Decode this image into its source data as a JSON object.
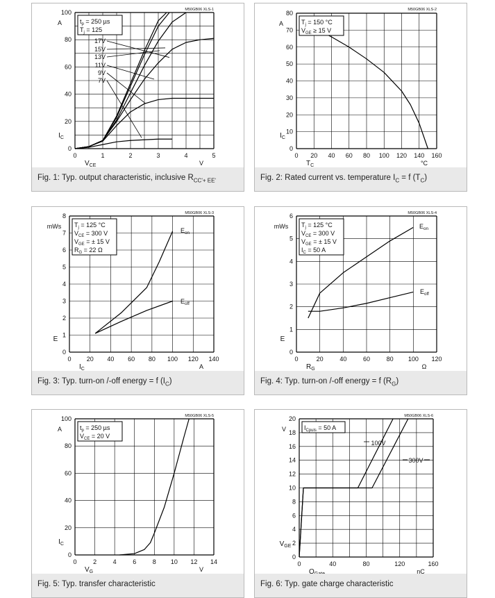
{
  "charts": [
    {
      "code": "M50GB06 XLS-1",
      "caption": "Fig. 1: Typ. output characteristic, inclusive R",
      "caption_sub": "CC'+ EE'",
      "legend": [
        "t",
        "p",
        " = 250 µs",
        "T",
        "j",
        " = 125"
      ],
      "ylabel": "I",
      "ylabel_sub": "C",
      "yunit": "A",
      "xlabel": "V",
      "xlabel_sub": "CE",
      "xunit": "V",
      "xlim": [
        0,
        5
      ],
      "ylim": [
        0,
        100
      ],
      "xticks": [
        "0",
        "1",
        "2",
        "3",
        "4",
        "5"
      ],
      "yticks": [
        "0",
        "20",
        "40",
        "60",
        "80",
        "100"
      ]
    },
    {
      "code": "M50GB06 XLS-2",
      "caption": "Fig. 2: Rated current vs. temperature I",
      "caption_mid_sub": "C",
      "caption_tail": " = f (T",
      "caption_tail_sub": "C",
      "caption_end": ")",
      "legend": [
        "T",
        "j",
        " = 150 °C",
        "V",
        "GE",
        " ≥ 15 V"
      ],
      "ylabel": "I",
      "ylabel_sub": "C",
      "yunit": "A",
      "xlabel": "T",
      "xlabel_sub": "C",
      "xunit": "°C",
      "xlim": [
        0,
        160
      ],
      "ylim": [
        0,
        80
      ],
      "xticks": [
        "0",
        "20",
        "40",
        "60",
        "80",
        "100",
        "120",
        "140",
        "160"
      ],
      "yticks": [
        "0",
        "10",
        "20",
        "30",
        "40",
        "50",
        "60",
        "70",
        "80"
      ]
    },
    {
      "code": "M50GB06 XLS-3",
      "caption": "Fig. 3: Typ. turn-on /-off energy = f (I",
      "caption_sub": "C",
      "caption_end": ")",
      "legend": [
        "T",
        "j",
        " = 125 °C",
        "V",
        "CE",
        " = 300 V",
        "V",
        "GE",
        " = ± 15 V",
        "R",
        "G",
        " = 22 Ω"
      ],
      "ylabel": "E",
      "yunit": "mWs",
      "xlabel": "I",
      "xlabel_sub": "C",
      "xunit": "A",
      "xlim": [
        0,
        140
      ],
      "ylim": [
        0,
        8
      ],
      "xticks": [
        "0",
        "20",
        "40",
        "60",
        "80",
        "100",
        "120",
        "140"
      ],
      "yticks": [
        "0",
        "1",
        "2",
        "3",
        "4",
        "5",
        "6",
        "7",
        "8"
      ]
    },
    {
      "code": "M50GB06 XLS-4",
      "caption": "Fig. 4: Typ. turn-on /-off energy = f (R",
      "caption_sub": "G",
      "caption_end": ")",
      "legend": [
        "T",
        "j",
        " = 125 °C",
        "V",
        "CE",
        " = 300 V",
        "V",
        "GE",
        " = ± 15 V",
        "I",
        "C",
        " = 50 A"
      ],
      "ylabel": "E",
      "yunit": "mWs",
      "xlabel": "R",
      "xlabel_sub": "G",
      "xunit": "Ω",
      "xlim": [
        0,
        120
      ],
      "ylim": [
        0,
        6
      ],
      "xticks": [
        "0",
        "20",
        "40",
        "60",
        "80",
        "100",
        "120"
      ],
      "yticks": [
        "0",
        "1",
        "2",
        "3",
        "4",
        "5",
        "6"
      ]
    },
    {
      "code": "M50GB06 XLS-5",
      "caption": "Fig. 5: Typ. transfer characteristic",
      "legend": [
        "t",
        "p",
        " = 250 µs",
        "V",
        "CE",
        " = 20 V"
      ],
      "ylabel": "I",
      "ylabel_sub": "C",
      "yunit": "A",
      "xlabel": "V",
      "xlabel_sub": "G",
      "xunit": "V",
      "xlim": [
        0,
        14
      ],
      "ylim": [
        0,
        100
      ],
      "xticks": [
        "0",
        "2",
        "4",
        "6",
        "8",
        "10",
        "12",
        "14"
      ],
      "yticks": [
        "0",
        "20",
        "40",
        "60",
        "80",
        "100"
      ]
    },
    {
      "code": "M50GB06 XLS-6",
      "caption": "Fig. 6: Typ. gate charge characteristic",
      "legend": [
        "I",
        "Cpuls",
        " = 50 A"
      ],
      "ylabel": "V",
      "ylabel_sub": "GE",
      "yunit": "V",
      "xlabel": "Q",
      "xlabel_sub": "Gate",
      "xunit": "nC",
      "xlim": [
        0,
        160
      ],
      "ylim": [
        0,
        20
      ],
      "xticks": [
        "0",
        "40",
        "80",
        "120",
        "160"
      ],
      "yticks": [
        "0",
        "2",
        "4",
        "6",
        "8",
        "10",
        "12",
        "14",
        "16",
        "18",
        "20"
      ]
    }
  ],
  "chart_data": [
    {
      "type": "line",
      "title": "Typ. output characteristic, inclusive RCC'+ EE'",
      "xlabel": "VCE",
      "ylabel": "IC",
      "xlim": [
        0,
        5
      ],
      "ylim": [
        0,
        100
      ],
      "grid": true,
      "series": [
        {
          "name": "17V",
          "x": [
            0,
            0.5,
            1.0,
            1.5,
            2.0,
            2.5,
            3.0,
            3.3
          ],
          "y": [
            0,
            1.5,
            6,
            24,
            48,
            72,
            94,
            100
          ]
        },
        {
          "name": "15V",
          "x": [
            0,
            0.5,
            1.0,
            1.5,
            2.0,
            2.5,
            3.0,
            3.4
          ],
          "y": [
            0,
            1.5,
            6,
            23,
            46,
            69,
            90,
            100
          ]
        },
        {
          "name": "13V",
          "x": [
            0,
            0.5,
            1.0,
            1.5,
            2.0,
            2.5,
            3.0,
            3.5,
            4.0
          ],
          "y": [
            0,
            1.5,
            6,
            21,
            41,
            61,
            79,
            93,
            100
          ]
        },
        {
          "name": "11V",
          "x": [
            0,
            0.5,
            1.0,
            1.5,
            2.0,
            2.5,
            3.0,
            3.5,
            4.0,
            4.5,
            5.0
          ],
          "y": [
            0,
            1.5,
            6,
            20,
            36,
            51,
            63,
            73,
            78,
            80,
            81
          ]
        },
        {
          "name": "9V",
          "x": [
            0,
            0.5,
            1.0,
            1.5,
            2.0,
            2.5,
            3.0,
            3.5,
            4.0,
            4.5,
            5.0
          ],
          "y": [
            0,
            1.5,
            5.5,
            17,
            27,
            33,
            36,
            37,
            37,
            37,
            37
          ]
        },
        {
          "name": "7V",
          "x": [
            0,
            0.5,
            1.0,
            1.5,
            2.0,
            2.5,
            3.0,
            3.5
          ],
          "y": [
            0,
            1,
            3,
            5,
            6,
            6.5,
            7,
            7
          ]
        }
      ]
    },
    {
      "type": "line",
      "title": "Rated current vs. temperature IC = f (TC)",
      "xlabel": "TC",
      "ylabel": "IC",
      "xlim": [
        0,
        160
      ],
      "ylim": [
        0,
        80
      ],
      "grid": true,
      "series": [
        {
          "x": [
            25,
            40,
            60,
            80,
            100,
            120,
            130,
            140,
            150
          ],
          "y": [
            70,
            66,
            60,
            53,
            45,
            34,
            26,
            15,
            0
          ]
        }
      ]
    },
    {
      "type": "line",
      "title": "Typ. turn-on /-off energy = f (IC)",
      "xlabel": "IC",
      "ylabel": "E",
      "xlim": [
        0,
        140
      ],
      "ylim": [
        0,
        8
      ],
      "grid": true,
      "series": [
        {
          "name": "Eon",
          "x": [
            25,
            50,
            75,
            87,
            100
          ],
          "y": [
            1.1,
            2.3,
            3.8,
            5.3,
            7.1
          ]
        },
        {
          "name": "Eoff",
          "x": [
            25,
            50,
            75,
            100
          ],
          "y": [
            1.1,
            1.8,
            2.45,
            3.0
          ]
        }
      ]
    },
    {
      "type": "line",
      "title": "Typ. turn-on /-off energy = f (RG)",
      "xlabel": "RG",
      "ylabel": "E",
      "xlim": [
        0,
        120
      ],
      "ylim": [
        0,
        6
      ],
      "grid": true,
      "series": [
        {
          "name": "Eon",
          "x": [
            10,
            20,
            40,
            60,
            80,
            100
          ],
          "y": [
            1.5,
            2.6,
            3.5,
            4.2,
            4.9,
            5.5
          ]
        },
        {
          "name": "Eoff",
          "x": [
            10,
            20,
            40,
            60,
            80,
            100
          ],
          "y": [
            1.8,
            1.8,
            1.95,
            2.15,
            2.4,
            2.65
          ]
        }
      ]
    },
    {
      "type": "line",
      "title": "Typ. transfer characteristic",
      "xlabel": "VG",
      "ylabel": "IC",
      "xlim": [
        0,
        14
      ],
      "ylim": [
        0,
        100
      ],
      "grid": true,
      "series": [
        {
          "x": [
            4.5,
            6,
            7,
            7.6,
            8,
            9,
            10,
            11,
            11.5
          ],
          "y": [
            0,
            1,
            4,
            9,
            16,
            35,
            60,
            87,
            100
          ]
        }
      ]
    },
    {
      "type": "line",
      "title": "Typ. gate charge characteristic",
      "xlabel": "QGate",
      "ylabel": "VGE",
      "xlim": [
        0,
        160
      ],
      "ylim": [
        0,
        20
      ],
      "grid": true,
      "series": [
        {
          "name": "100V",
          "x": [
            0,
            5,
            70,
            112
          ],
          "y": [
            0,
            10,
            10,
            20
          ]
        },
        {
          "name": "300V",
          "x": [
            0,
            5,
            87,
            130
          ],
          "y": [
            0,
            10,
            10,
            20
          ]
        }
      ]
    }
  ]
}
